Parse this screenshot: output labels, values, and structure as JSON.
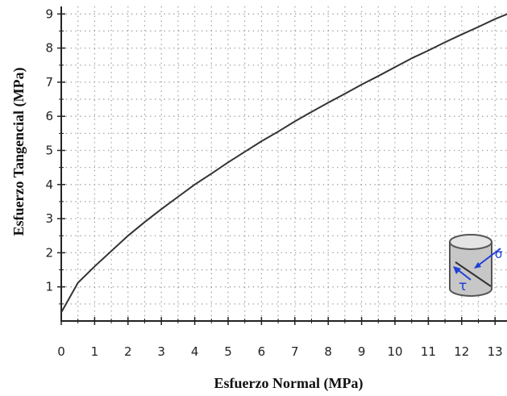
{
  "chart_data": {
    "type": "line",
    "xlabel": "Esfuerzo Normal (MPa)",
    "ylabel": "Esfuerzo Tangencial (MPa)",
    "xlim": [
      0,
      13
    ],
    "ylim": [
      0,
      9
    ],
    "x_ticks": [
      "0",
      "1",
      "2",
      "3",
      "4",
      "5",
      "6",
      "7",
      "8",
      "9",
      "10",
      "11",
      "12",
      "13"
    ],
    "y_ticks": [
      "1",
      "2",
      "3",
      "4",
      "5",
      "6",
      "7",
      "8",
      "9"
    ],
    "grid": true,
    "series": [
      {
        "color": "#333333",
        "x": [
          0,
          0.5,
          1,
          1.5,
          2,
          2.5,
          3,
          3.5,
          4,
          4.5,
          5,
          5.5,
          6,
          6.5,
          7,
          7.5,
          8,
          8.5,
          9,
          9.5,
          10,
          10.5,
          11,
          11.5,
          12,
          12.5,
          13,
          13.5
        ],
        "values": [
          0.25,
          1.12,
          1.6,
          2.05,
          2.5,
          2.9,
          3.28,
          3.64,
          4.0,
          4.32,
          4.65,
          4.96,
          5.27,
          5.55,
          5.85,
          6.13,
          6.4,
          6.66,
          6.93,
          7.18,
          7.44,
          7.7,
          7.93,
          8.17,
          8.4,
          8.62,
          8.85,
          9.05
        ]
      }
    ],
    "inset_icon": {
      "name": "rock-specimen-cylinder-icon",
      "labels": [
        "σ",
        "τ"
      ],
      "color": "#1f3fd6"
    }
  }
}
